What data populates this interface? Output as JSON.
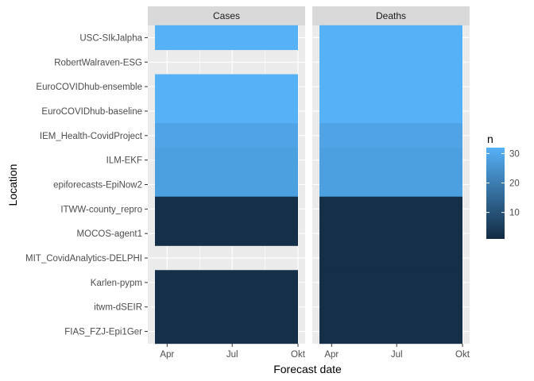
{
  "chart_data": {
    "type": "heatmap",
    "ylabel": "Location",
    "xlabel": "Forecast date",
    "facets": [
      "Cases",
      "Deaths"
    ],
    "x_ticks": [
      "Apr",
      "Jul",
      "Okt"
    ],
    "x_range": [
      "2021-03-15",
      "2021-10-01"
    ],
    "x_tick_dates": [
      "2021-04-01",
      "2021-07-01",
      "2021-10-01"
    ],
    "models": [
      "USC-SIkJalpha",
      "RobertWalraven-ESG",
      "EuroCOVIDhub-ensemble",
      "EuroCOVIDhub-baseline",
      "IEM_Health-CovidProject",
      "ILM-EKF",
      "epiforecasts-EpiNow2",
      "ITWW-county_repro",
      "MOCOS-agent1",
      "MIT_CovidAnalytics-DELPHI",
      "Karlen-pypm",
      "itwm-dSEIR",
      "FIAS_FZJ-Epi1Ger"
    ],
    "series": [
      {
        "name": "Cases",
        "values": [
          32,
          null,
          32,
          32,
          29,
          28,
          28,
          2,
          2,
          null,
          2,
          2,
          2
        ]
      },
      {
        "name": "Deaths",
        "values": [
          32,
          32,
          32,
          32,
          29,
          28,
          28,
          2,
          2,
          2,
          2,
          2,
          2
        ]
      }
    ],
    "legend": {
      "title": "n",
      "ticks": [
        10,
        20,
        30
      ],
      "range": [
        1,
        32
      ],
      "low_color": "#132B43",
      "high_color": "#56B1F7",
      "position": "right"
    },
    "panel_background": "#EBEBEB",
    "strip_background": "#D9D9D9",
    "grid": true
  }
}
